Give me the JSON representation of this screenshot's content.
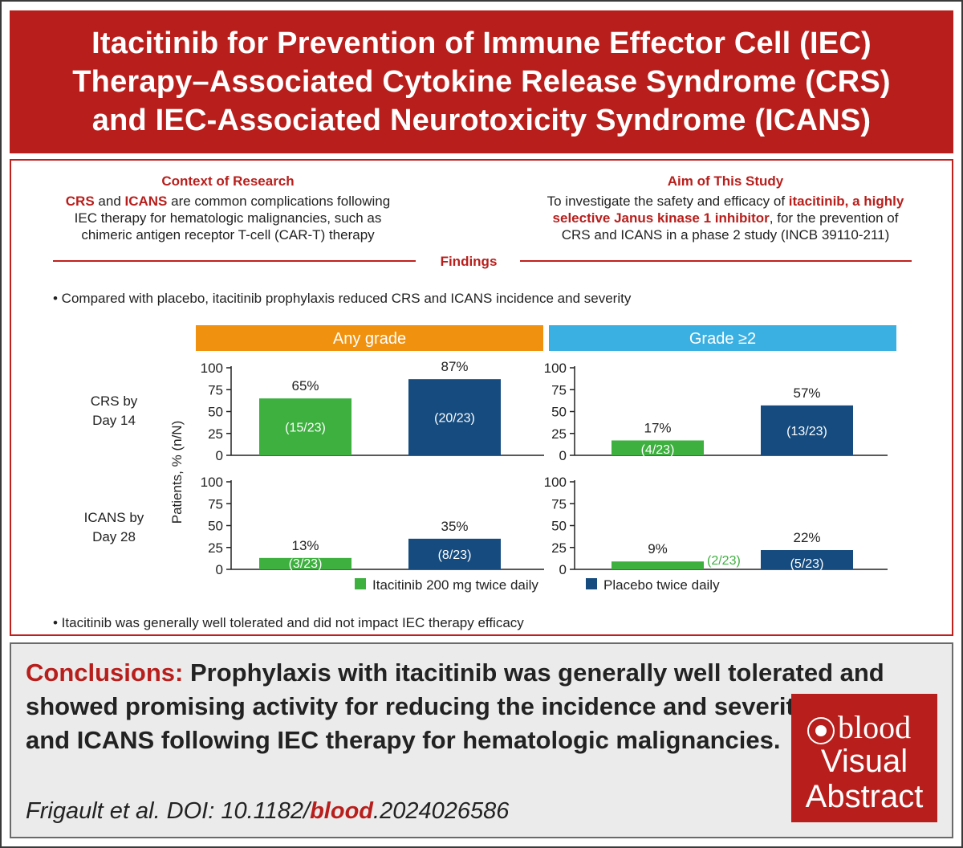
{
  "title": {
    "line1": "Itacitinib for Prevention of Immune Effector Cell (IEC)",
    "line2": "Therapy–Associated Cytokine Release Syndrome (CRS)",
    "line3": "and IEC-Associated Neurotoxicity Syndrome (ICANS)"
  },
  "context": {
    "heading": "Context of Research",
    "crs": "CRS",
    "and": " and ",
    "icans": "ICANS",
    "text1": " are common complications following",
    "text2": "IEC therapy for hematologic malignancies, such as",
    "text3": "chimeric antigen receptor T-cell (CAR-T) therapy"
  },
  "aim": {
    "heading": "Aim of This Study",
    "text1a": "To investigate the safety and efficacy of ",
    "text1b": "itacitinib, a highly",
    "text2a": "selective Janus kinase 1 inhibitor",
    "text2b": ", for the prevention of",
    "text3": "CRS and ICANS in a phase 2 study (INCB 39110-211)"
  },
  "findings": {
    "heading": "Findings",
    "bullet1": "• Compared with placebo, itacitinib prophylaxis reduced CRS and ICANS incidence and severity",
    "bullet2": "• Itacitinib was generally well tolerated and did not impact IEC therapy efficacy"
  },
  "chart_data": {
    "type": "bar",
    "column_headers": [
      "Any grade",
      "Grade ≥2"
    ],
    "header_colors": [
      "#f0920f",
      "#3ab0e2"
    ],
    "row_labels": [
      "CRS by Day 14",
      "ICANS by Day 28"
    ],
    "ylabel": "Patients, % (n/N)",
    "ylim": [
      0,
      100
    ],
    "yticks": [
      "0",
      "25",
      "50",
      "75",
      "100"
    ],
    "series": [
      {
        "name": "Itacitinib 200 mg twice daily",
        "color": "#3db03f"
      },
      {
        "name": "Placebo twice daily",
        "color": "#154b7e"
      }
    ],
    "panels": [
      {
        "row": "CRS by Day 14",
        "column": "Any grade",
        "bars": [
          {
            "series": "Itacitinib 200 mg twice daily",
            "value": 65,
            "label": "65%",
            "count": "(15/23)"
          },
          {
            "series": "Placebo twice daily",
            "value": 87,
            "label": "87%",
            "count": "(20/23)"
          }
        ]
      },
      {
        "row": "CRS by Day 14",
        "column": "Grade ≥2",
        "bars": [
          {
            "series": "Itacitinib 200 mg twice daily",
            "value": 17,
            "label": "17%",
            "count": "(4/23)"
          },
          {
            "series": "Placebo twice daily",
            "value": 57,
            "label": "57%",
            "count": "(13/23)"
          }
        ]
      },
      {
        "row": "ICANS by Day 28",
        "column": "Any grade",
        "bars": [
          {
            "series": "Itacitinib 200 mg twice daily",
            "value": 13,
            "label": "13%",
            "count": "(3/23)"
          },
          {
            "series": "Placebo twice daily",
            "value": 35,
            "label": "35%",
            "count": "(8/23)"
          }
        ]
      },
      {
        "row": "ICANS by Day 28",
        "column": "Grade ≥2",
        "bars": [
          {
            "series": "Itacitinib 200 mg twice daily",
            "value": 9,
            "label": "9%",
            "count": "(2/23)"
          },
          {
            "series": "Placebo twice daily",
            "value": 22,
            "label": "22%",
            "count": "(5/23)"
          }
        ]
      }
    ]
  },
  "conclusion": {
    "label": "Conclusions:",
    "text": " Prophylaxis with itacitinib was generally well tolerated and showed promising activity for reducing the incidence and severity of CRS and ICANS following IEC therapy for hematologic malignancies."
  },
  "citation": {
    "prefix": "Frigault et al. DOI: 10.1182/",
    "journal": "blood",
    "suffix": ".2024026586"
  },
  "logo": {
    "wordmark": "blood",
    "line2": "Visual",
    "line3": "Abstract"
  }
}
